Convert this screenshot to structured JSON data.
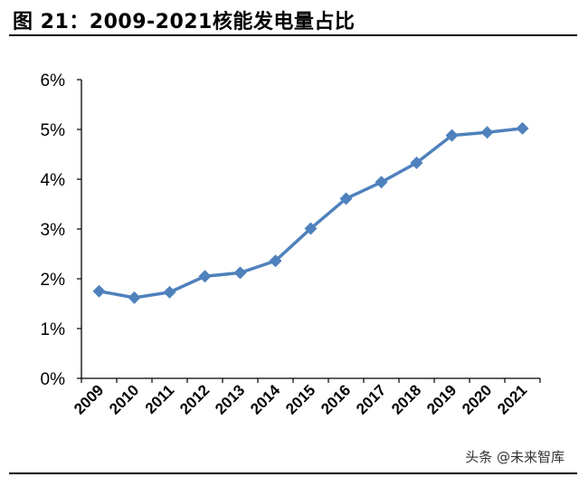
{
  "header": {
    "title": "图 21：2009-2021核能发电量占比"
  },
  "watermark": "头条 @未来智库",
  "chart_data": {
    "type": "line",
    "title": "图 21：2009-2021核能发电量占比",
    "categories": [
      "2009",
      "2010",
      "2011",
      "2012",
      "2013",
      "2014",
      "2015",
      "2016",
      "2017",
      "2018",
      "2019",
      "2020",
      "2021"
    ],
    "series": [
      {
        "values": [
          1.75,
          1.62,
          1.73,
          2.05,
          2.12,
          2.36,
          3.01,
          3.61,
          3.94,
          4.33,
          4.88,
          4.94,
          5.02
        ]
      }
    ],
    "yticks": [
      "0%",
      "1%",
      "2%",
      "3%",
      "4%",
      "5%",
      "6%"
    ],
    "ylim": [
      0,
      6
    ],
    "xlabel": "",
    "ylabel": "",
    "grid": false,
    "legend": "none",
    "colors": {
      "line": "#4F81BD"
    }
  }
}
